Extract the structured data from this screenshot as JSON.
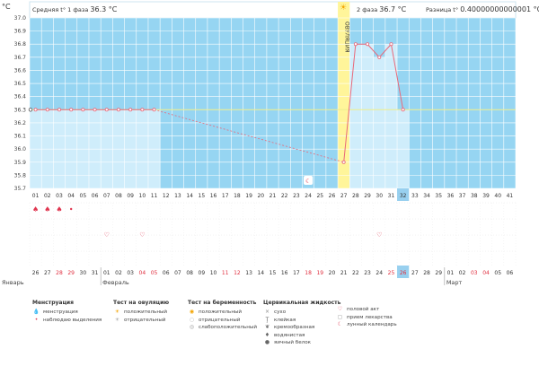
{
  "header": {
    "phase1": {
      "label": "Средняя t° 1 фаза",
      "value": "36.3 °C"
    },
    "phase2": {
      "label": "2 фаза",
      "value": "36.7 °C"
    },
    "diff": {
      "label": "Разница t°",
      "value": "0.40000000000001 °C"
    },
    "unit": "°C"
  },
  "ovulation_label": "ОВУЛЯЦИЯ",
  "colors": {
    "background": "#96d5f2",
    "phase_fill": "#cfedfb",
    "grid": "#ffffff",
    "line": "#e9697a",
    "coverline": "#eeee88",
    "ovulation": "#fff59a",
    "current_day": "#98d0ef"
  },
  "chart_data": {
    "type": "line",
    "ylim": [
      35.7,
      37.0
    ],
    "y_ticks": [
      "37.0",
      "36.9",
      "36.8",
      "36.7",
      "36.6",
      "36.5",
      "36.4",
      "36.3",
      "36.2",
      "36.1",
      "36.0",
      "35.9",
      "35.8",
      "35.7"
    ],
    "cycle_days": [
      "01",
      "02",
      "03",
      "04",
      "05",
      "06",
      "07",
      "08",
      "09",
      "10",
      "11",
      "12",
      "13",
      "14",
      "15",
      "16",
      "17",
      "18",
      "19",
      "20",
      "21",
      "22",
      "23",
      "24",
      "25",
      "26",
      "27",
      "28",
      "29",
      "30",
      "31",
      "32",
      "33",
      "34",
      "35",
      "36",
      "37",
      "38",
      "39",
      "40",
      "41"
    ],
    "dates": [
      "26",
      "27",
      "28",
      "29",
      "30",
      "31",
      "01",
      "02",
      "03",
      "04",
      "05",
      "06",
      "07",
      "08",
      "09",
      "10",
      "11",
      "12",
      "13",
      "14",
      "15",
      "16",
      "17",
      "18",
      "19",
      "20",
      "21",
      "22",
      "23",
      "24",
      "25",
      "26",
      "27",
      "28",
      "29",
      "01",
      "02",
      "03",
      "04",
      "05",
      "06"
    ],
    "weekend_dates_idx": [
      2,
      3,
      9,
      10,
      16,
      17,
      23,
      24,
      30,
      31,
      37,
      38
    ],
    "months": [
      "Январь",
      "Февраль",
      "Март"
    ],
    "current_day": "32",
    "ovulation_day": "27",
    "coverline": 36.3,
    "series": [
      {
        "x": [
          "01",
          "02",
          "03",
          "04",
          "05",
          "06",
          "07",
          "08",
          "09",
          "10",
          "11"
        ],
        "y": [
          36.3,
          36.3,
          36.3,
          36.3,
          36.3,
          36.3,
          36.3,
          36.3,
          36.3,
          36.3,
          36.3
        ]
      },
      {
        "x": [
          "27",
          "28",
          "29",
          "30",
          "31",
          "32"
        ],
        "y": [
          35.9,
          36.8,
          36.8,
          36.7,
          36.8,
          36.3
        ]
      }
    ],
    "gap": {
      "from": "11",
      "to": "27"
    }
  },
  "markers": {
    "menstruation_days": [
      "01",
      "02",
      "03"
    ],
    "spotting_days": [
      "04"
    ],
    "intercourse_days": [
      "07",
      "10",
      "30"
    ],
    "lunar_day": "24"
  },
  "legend": {
    "menstruation": {
      "title": "Менструация",
      "items": [
        "менструация",
        "наблюдаю выделения"
      ]
    },
    "ovulation_test": {
      "title": "Тест на овуляцию",
      "items": [
        "положительный",
        "отрицательный"
      ]
    },
    "pregnancy_test": {
      "title": "Тест на беременность",
      "items": [
        "положительный",
        "отрицательный",
        "слабоположительный"
      ]
    },
    "cervical": {
      "title": "Цервикальная жидкость",
      "items": [
        "сухо",
        "клейкая",
        "кремообразная",
        "водянистая",
        "яичный белок"
      ]
    },
    "other": {
      "items": [
        "половой акт",
        "прием лекарства",
        "лунный календарь"
      ]
    }
  }
}
